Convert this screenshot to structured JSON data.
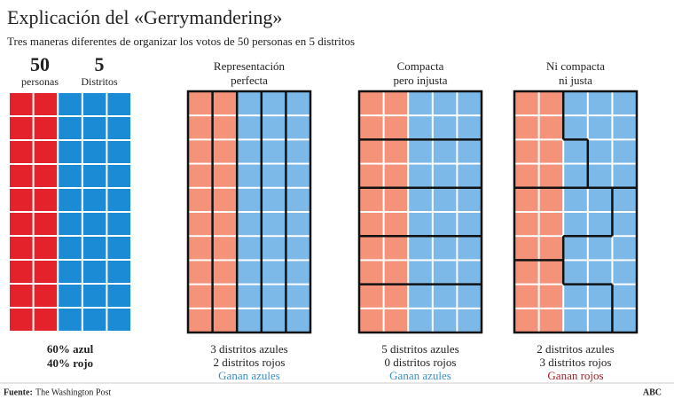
{
  "header": {
    "title": "Explicación del «Gerrymandering»",
    "subtitle": "Tres maneras diferentes de organizar los votos de 50 personas en 5 distritos"
  },
  "intro": {
    "people": "50",
    "people_label": "personas",
    "districts": "5",
    "districts_label": "Distritos",
    "notes": [
      "60% azul",
      "40% rojo"
    ],
    "colors": {
      "red": "#e3222b",
      "blue": "#1c8bd6"
    }
  },
  "panels": [
    {
      "title_lines": [
        "Representación",
        "perfecta"
      ],
      "results": [
        "3 distritos azules",
        "2 distritos rojos"
      ],
      "winner": "Ganan azules",
      "winner_color": "#3a8fc4"
    },
    {
      "title_lines": [
        "Compacta",
        "pero injusta"
      ],
      "results": [
        "5 distritos azules",
        "0 distritos rojos"
      ],
      "winner": "Ganan azules",
      "winner_color": "#3a8fc4"
    },
    {
      "title_lines": [
        "Ni compacta",
        "ni justa"
      ],
      "results": [
        "2 distritos azules",
        "3 distritos rojos"
      ],
      "winner": "Ganan rojos",
      "winner_color": "#a3222a"
    }
  ],
  "panel_colors": {
    "red": "#f4937a",
    "blue": "#7db9e8"
  },
  "footer": {
    "source_label": "Fuente:",
    "source": "The Washington Post",
    "brand": "ABC"
  }
}
